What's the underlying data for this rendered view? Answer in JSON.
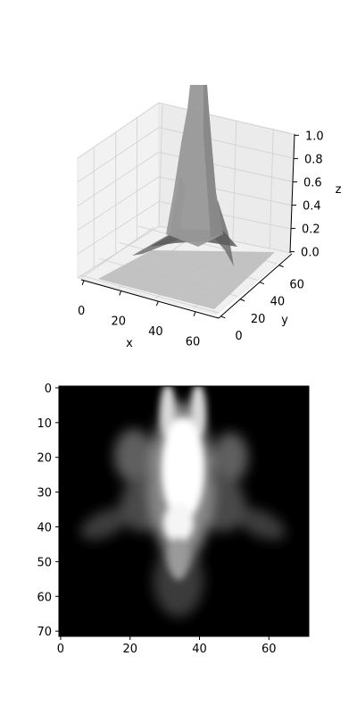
{
  "chart_data": [
    {
      "type": "surface3d",
      "xlabel": "x",
      "ylabel": "y",
      "zlabel": "z",
      "xlim": [
        0,
        71
      ],
      "ylim": [
        0,
        71
      ],
      "zlim": [
        0.0,
        1.0
      ],
      "x_ticks": [
        "0",
        "20",
        "40",
        "60"
      ],
      "y_ticks": [
        "0",
        "20",
        "40",
        "60"
      ],
      "z_ticks": [
        "0.0",
        "0.2",
        "0.4",
        "0.6",
        "0.8",
        "1.0"
      ],
      "grid": true,
      "surface_color": "#9a9a9a"
    },
    {
      "type": "heatmap",
      "colormap": "gray",
      "shape": [
        72,
        72
      ],
      "x_ticks": [
        "0",
        "20",
        "40",
        "60"
      ],
      "y_ticks": [
        "0",
        "10",
        "20",
        "30",
        "40",
        "50",
        "60",
        "70"
      ]
    }
  ]
}
